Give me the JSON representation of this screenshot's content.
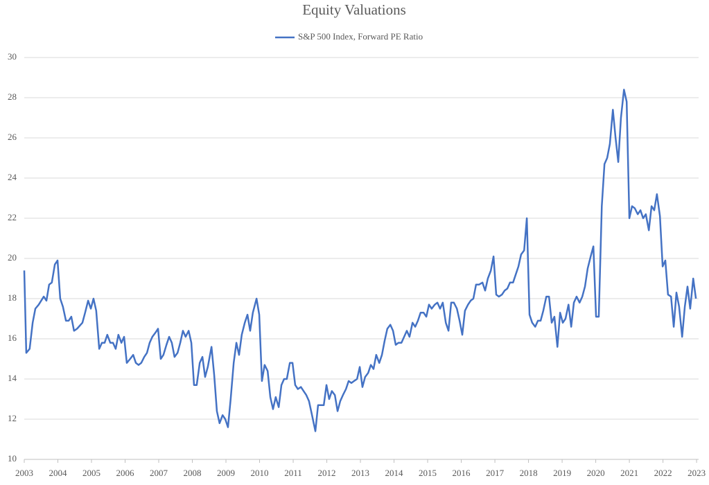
{
  "chart_data": {
    "type": "line",
    "title": "Equity Valuations",
    "x": [
      2003,
      2003.06,
      2003.16,
      2003.25,
      2003.33,
      2003.43,
      2003.58,
      2003.66,
      2003.74,
      2003.82,
      2003.91,
      2003.99,
      2004.07,
      2004.15,
      2004.24,
      2004.32,
      2004.4,
      2004.48,
      2004.57,
      2004.73,
      2004.81,
      2004.9,
      2004.98,
      2005.06,
      2005.14,
      2005.23,
      2005.31,
      2005.39,
      2005.47,
      2005.56,
      2005.64,
      2005.72,
      2005.8,
      2005.89,
      2005.97,
      2006.05,
      2006.15,
      2006.24,
      2006.32,
      2006.4,
      2006.48,
      2006.57,
      2006.65,
      2006.73,
      2006.81,
      2006.9,
      2006.98,
      2007.06,
      2007.14,
      2007.23,
      2007.31,
      2007.39,
      2007.47,
      2007.56,
      2007.64,
      2007.72,
      2007.8,
      2007.89,
      2007.97,
      2008.05,
      2008.13,
      2008.22,
      2008.3,
      2008.38,
      2008.46,
      2008.57,
      2008.65,
      2008.73,
      2008.81,
      2008.9,
      2008.98,
      2009.06,
      2009.14,
      2009.23,
      2009.31,
      2009.39,
      2009.47,
      2009.56,
      2009.64,
      2009.72,
      2009.8,
      2009.91,
      2009.99,
      2010.07,
      2010.15,
      2010.24,
      2010.32,
      2010.4,
      2010.48,
      2010.57,
      2010.65,
      2010.73,
      2010.81,
      2010.9,
      2010.98,
      2011.06,
      2011.14,
      2011.23,
      2011.31,
      2011.39,
      2011.47,
      2011.56,
      2011.66,
      2011.74,
      2011.82,
      2011.91,
      2011.99,
      2012.07,
      2012.15,
      2012.24,
      2012.32,
      2012.4,
      2012.48,
      2012.57,
      2012.65,
      2012.73,
      2012.81,
      2012.9,
      2012.98,
      2013.06,
      2013.14,
      2013.23,
      2013.31,
      2013.39,
      2013.47,
      2013.56,
      2013.64,
      2013.72,
      2013.8,
      2013.89,
      2013.97,
      2014.05,
      2014.13,
      2014.22,
      2014.3,
      2014.38,
      2014.46,
      2014.55,
      2014.63,
      2014.71,
      2014.79,
      2014.88,
      2014.96,
      2015.04,
      2015.12,
      2015.21,
      2015.29,
      2015.37,
      2015.45,
      2015.54,
      2015.62,
      2015.7,
      2015.78,
      2015.87,
      2015.95,
      2016.03,
      2016.11,
      2016.2,
      2016.28,
      2016.36,
      2016.44,
      2016.53,
      2016.63,
      2016.71,
      2016.79,
      2016.88,
      2016.96,
      2017.04,
      2017.12,
      2017.21,
      2017.29,
      2017.37,
      2017.45,
      2017.54,
      2017.62,
      2017.7,
      2017.78,
      2017.87,
      2017.95,
      2018.03,
      2018.11,
      2018.2,
      2018.28,
      2018.36,
      2018.44,
      2018.53,
      2018.61,
      2018.69,
      2018.77,
      2018.86,
      2018.94,
      2019.02,
      2019.1,
      2019.19,
      2019.27,
      2019.35,
      2019.43,
      2019.52,
      2019.6,
      2019.68,
      2019.76,
      2019.85,
      2019.93,
      2020.01,
      2020.09,
      2020.18,
      2020.26,
      2020.34,
      2020.42,
      2020.51,
      2020.59,
      2020.67,
      2020.75,
      2020.84,
      2020.92,
      2021,
      2021.08,
      2021.16,
      2021.25,
      2021.33,
      2021.41,
      2021.49,
      2021.58,
      2021.66,
      2021.74,
      2021.82,
      2021.91,
      2021.99,
      2022.07,
      2022.15,
      2022.24,
      2022.32,
      2022.4,
      2022.48,
      2022.57,
      2022.65,
      2022.73,
      2022.81,
      2022.9,
      2022.98
    ],
    "xlim": [
      2003,
      2023.06
    ],
    "xticks": [
      2003,
      2004,
      2005,
      2006,
      2007,
      2008,
      2009,
      2010,
      2011,
      2012,
      2013,
      2014,
      2015,
      2016,
      2017,
      2018,
      2019,
      2020,
      2021,
      2022,
      2023
    ],
    "series": [
      {
        "name": "S&P 500 Index, Forward PE Ratio",
        "color": "#4472c4",
        "values": [
          19.4,
          15.3,
          15.5,
          16.8,
          17.5,
          17.7,
          18.1,
          17.9,
          18.7,
          18.8,
          19.7,
          19.9,
          18.0,
          17.6,
          16.9,
          16.9,
          17.1,
          16.4,
          16.5,
          16.8,
          17.3,
          17.9,
          17.5,
          18.0,
          17.4,
          15.5,
          15.8,
          15.8,
          16.2,
          15.8,
          15.8,
          15.5,
          16.2,
          15.8,
          16.1,
          14.8,
          15.0,
          15.2,
          14.8,
          14.7,
          14.8,
          15.1,
          15.3,
          15.8,
          16.1,
          16.3,
          16.5,
          15.0,
          15.2,
          15.7,
          16.1,
          15.8,
          15.1,
          15.3,
          15.8,
          16.4,
          16.1,
          16.4,
          15.8,
          13.7,
          13.7,
          14.8,
          15.1,
          14.1,
          14.6,
          15.6,
          14.2,
          12.4,
          11.8,
          12.2,
          12.0,
          11.6,
          13.0,
          14.8,
          15.8,
          15.2,
          16.2,
          16.8,
          17.2,
          16.4,
          17.3,
          18.0,
          17.2,
          13.9,
          14.7,
          14.4,
          13.1,
          12.5,
          13.1,
          12.6,
          13.7,
          14.0,
          14.0,
          14.8,
          14.8,
          13.7,
          13.5,
          13.6,
          13.4,
          13.2,
          12.9,
          12.2,
          11.4,
          12.7,
          12.7,
          12.7,
          13.7,
          13.0,
          13.4,
          13.2,
          12.4,
          12.9,
          13.2,
          13.5,
          13.9,
          13.8,
          13.9,
          14.0,
          14.6,
          13.6,
          14.1,
          14.3,
          14.7,
          14.5,
          15.2,
          14.8,
          15.2,
          15.9,
          16.5,
          16.7,
          16.4,
          15.7,
          15.8,
          15.8,
          16.1,
          16.4,
          16.1,
          16.8,
          16.6,
          16.9,
          17.3,
          17.3,
          17.1,
          17.7,
          17.5,
          17.7,
          17.8,
          17.5,
          17.8,
          16.8,
          16.4,
          17.8,
          17.8,
          17.5,
          16.9,
          16.2,
          17.4,
          17.7,
          17.9,
          18.0,
          18.7,
          18.7,
          18.8,
          18.4,
          19.0,
          19.4,
          20.1,
          18.2,
          18.1,
          18.2,
          18.4,
          18.5,
          18.8,
          18.8,
          19.2,
          19.6,
          20.2,
          20.4,
          22.0,
          17.2,
          16.8,
          16.6,
          16.9,
          16.9,
          17.4,
          18.1,
          18.1,
          16.8,
          17.1,
          15.6,
          17.3,
          16.8,
          17.0,
          17.7,
          16.6,
          17.8,
          18.1,
          17.8,
          18.1,
          18.6,
          19.5,
          20.1,
          20.6,
          17.1,
          17.1,
          22.6,
          24.7,
          25.0,
          25.7,
          27.4,
          26.0,
          24.8,
          27.0,
          28.4,
          27.8,
          22.0,
          22.6,
          22.5,
          22.2,
          22.4,
          22.0,
          22.2,
          21.4,
          22.6,
          22.4,
          23.2,
          22.1,
          19.6,
          19.9,
          18.2,
          18.1,
          16.6,
          18.3,
          17.6,
          16.1,
          17.6,
          18.6,
          17.5,
          19.0,
          18.0
        ]
      }
    ],
    "ylim": [
      10,
      30
    ],
    "yticks": [
      10,
      12,
      14,
      16,
      18,
      20,
      22,
      24,
      26,
      28,
      30
    ],
    "grid": true
  }
}
